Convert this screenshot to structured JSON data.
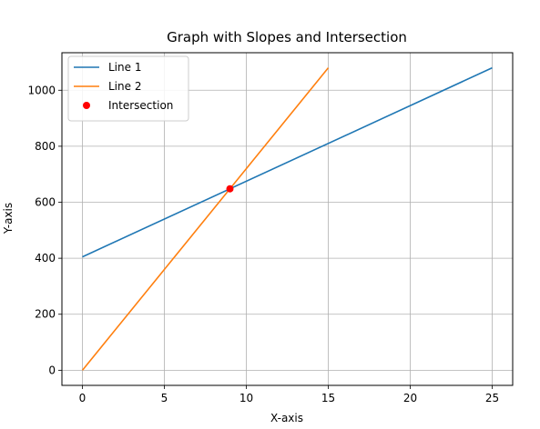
{
  "chart_data": {
    "type": "line",
    "title": "Graph with Slopes and Intersection",
    "xlabel": "X-axis",
    "ylabel": "Y-axis",
    "xlim": [
      -1.25,
      26.25
    ],
    "ylim": [
      -54,
      1134
    ],
    "xticks": [
      0,
      5,
      10,
      15,
      20,
      25
    ],
    "yticks": [
      0,
      200,
      400,
      600,
      800,
      1000
    ],
    "grid": true,
    "legend_position": "top-left",
    "series": [
      {
        "name": "Line 1",
        "color": "#1f77b4",
        "x": [
          0,
          25
        ],
        "y": [
          405,
          1080
        ]
      },
      {
        "name": "Line 2",
        "color": "#ff7f0e",
        "x": [
          0,
          15
        ],
        "y": [
          0,
          1080
        ]
      }
    ],
    "points": [
      {
        "name": "Intersection",
        "color": "#ff0000",
        "x": 9,
        "y": 648
      }
    ]
  }
}
